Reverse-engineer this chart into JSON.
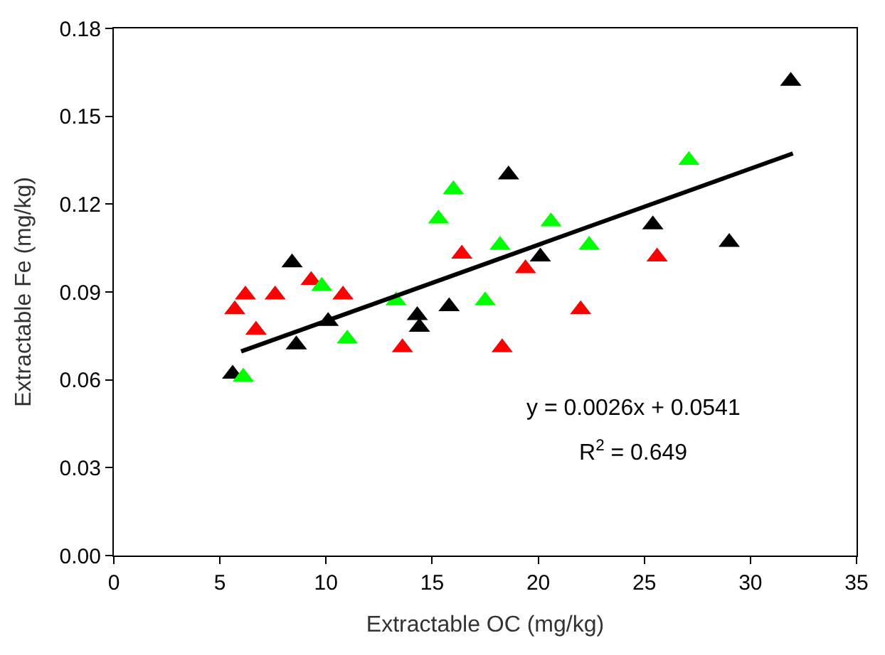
{
  "chart_data": {
    "type": "scatter",
    "xlabel": "Extractable OC (mg/kg)",
    "ylabel": "Extractable Fe (mg/kg)",
    "xlim": [
      0,
      35
    ],
    "xticks": [
      0,
      5,
      10,
      15,
      20,
      25,
      30,
      35
    ],
    "ylim": [
      0,
      0.18
    ],
    "yticks": [
      {
        "value": 0,
        "label": "0.00"
      },
      {
        "value": 0.03,
        "label": "0.03"
      },
      {
        "value": 0.06,
        "label": "0.06"
      },
      {
        "value": 0.09,
        "label": "0.09"
      },
      {
        "value": 0.12,
        "label": "0.12"
      },
      {
        "value": 0.15,
        "label": "0.15"
      },
      {
        "value": 0.18,
        "label": "0.18"
      }
    ],
    "marker": "triangle",
    "series": [
      {
        "color": "#000000",
        "x": [
          5.6,
          8.4,
          8.6,
          10.1,
          14.3,
          14.4,
          15.8,
          18.6,
          20.1,
          25.4,
          29.0,
          31.9
        ],
        "values": [
          0.062,
          0.1,
          0.072,
          0.08,
          0.082,
          0.078,
          0.085,
          0.13,
          0.102,
          0.113,
          0.107,
          0.162
        ]
      },
      {
        "color": "#ff0000",
        "x": [
          5.7,
          6.2,
          6.7,
          7.6,
          9.3,
          10.8,
          13.6,
          16.4,
          18.3,
          19.4,
          22.0,
          25.6
        ],
        "values": [
          0.084,
          0.089,
          0.077,
          0.089,
          0.094,
          0.089,
          0.071,
          0.103,
          0.071,
          0.098,
          0.084,
          0.102
        ]
      },
      {
        "color": "#00ff00",
        "x": [
          6.1,
          9.8,
          11.0,
          13.3,
          15.3,
          16.0,
          17.5,
          18.2,
          20.6,
          22.4,
          27.1
        ],
        "values": [
          0.061,
          0.092,
          0.074,
          0.087,
          0.115,
          0.125,
          0.087,
          0.106,
          0.114,
          0.106,
          0.135
        ]
      },
      {
        "type": "line",
        "color": "#000000",
        "marker": "none",
        "x": [
          6.0,
          32.0
        ],
        "values": [
          0.0697,
          0.1373
        ]
      }
    ],
    "annotations": [
      "y = 0.0026x + 0.0541",
      "R$^{2}$ = 0.649"
    ]
  }
}
